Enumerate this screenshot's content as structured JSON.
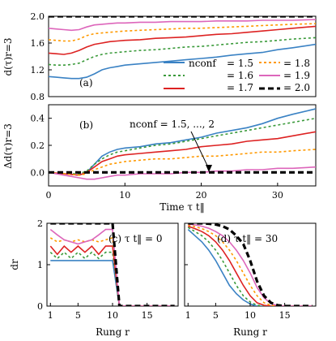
{
  "colors": {
    "1.5": "#3a82c4",
    "1.6": "#3a9a3a",
    "1.7": "#dd2222",
    "1.8": "#ff9900",
    "1.9": "#dd66bb",
    "2.0": "#000000"
  },
  "text": {
    "panel_a": "(a)",
    "panel_b": "(b)",
    "panel_c": "(c) τ t‖ = 0",
    "panel_d": "(d) τ t‖ = 30",
    "annotation": "nconf = 1.5, ..., 2",
    "xlabel_top": "Time τ t‖",
    "xlabel_bottom": "Rung r",
    "xlabel_bottom2": "Rung r",
    "ylabel_a": "d(τ)r=3",
    "ylabel_b": "Δd(τ)r=3",
    "ylabel_c": "dr",
    "legend_prefix": "nconf",
    "legend": [
      "= 1.5",
      "= 1.6",
      "= 1.7",
      "= 1.8",
      "= 1.9",
      "= 2.0"
    ]
  },
  "chart_data": [
    {
      "panel": "a",
      "type": "line",
      "xlim": [
        0,
        35
      ],
      "ylim": [
        0.8,
        2.0
      ],
      "yticks": [
        0.8,
        1.2,
        1.6,
        2.0
      ],
      "ylabel": "d(τ)r=3",
      "series": [
        {
          "name": "1.5",
          "x": [
            0,
            1,
            2,
            3,
            4,
            5,
            6,
            7,
            8,
            9,
            10,
            12,
            14,
            16,
            18,
            20,
            22,
            24,
            26,
            28,
            30,
            32,
            35
          ],
          "y": [
            1.1,
            1.09,
            1.08,
            1.07,
            1.07,
            1.09,
            1.14,
            1.2,
            1.23,
            1.25,
            1.27,
            1.29,
            1.31,
            1.33,
            1.35,
            1.37,
            1.39,
            1.42,
            1.44,
            1.46,
            1.5,
            1.53,
            1.58
          ]
        },
        {
          "name": "1.6",
          "x": [
            0,
            1,
            2,
            3,
            4,
            5,
            6,
            7,
            8,
            9,
            10,
            12,
            14,
            16,
            18,
            20,
            22,
            24,
            26,
            28,
            30,
            32,
            35
          ],
          "y": [
            1.28,
            1.27,
            1.27,
            1.28,
            1.3,
            1.35,
            1.4,
            1.43,
            1.45,
            1.46,
            1.47,
            1.49,
            1.5,
            1.52,
            1.54,
            1.55,
            1.57,
            1.59,
            1.61,
            1.62,
            1.64,
            1.66,
            1.68
          ]
        },
        {
          "name": "1.7",
          "x": [
            0,
            1,
            2,
            3,
            4,
            5,
            6,
            7,
            8,
            9,
            10,
            12,
            14,
            16,
            18,
            20,
            22,
            24,
            26,
            28,
            30,
            32,
            35
          ],
          "y": [
            1.45,
            1.44,
            1.43,
            1.45,
            1.49,
            1.54,
            1.58,
            1.6,
            1.62,
            1.63,
            1.64,
            1.65,
            1.67,
            1.68,
            1.69,
            1.71,
            1.73,
            1.74,
            1.76,
            1.78,
            1.8,
            1.82,
            1.85
          ]
        },
        {
          "name": "1.8",
          "x": [
            0,
            1,
            2,
            3,
            4,
            5,
            6,
            7,
            8,
            9,
            10,
            12,
            14,
            16,
            18,
            20,
            22,
            24,
            26,
            28,
            30,
            32,
            35
          ],
          "y": [
            1.65,
            1.64,
            1.63,
            1.63,
            1.66,
            1.71,
            1.74,
            1.75,
            1.76,
            1.77,
            1.78,
            1.79,
            1.8,
            1.81,
            1.82,
            1.82,
            1.83,
            1.84,
            1.85,
            1.86,
            1.87,
            1.88,
            1.89
          ]
        },
        {
          "name": "1.9",
          "x": [
            0,
            1,
            2,
            3,
            4,
            5,
            6,
            7,
            8,
            9,
            10,
            12,
            14,
            16,
            18,
            20,
            22,
            24,
            26,
            28,
            30,
            32,
            35
          ],
          "y": [
            1.82,
            1.81,
            1.8,
            1.79,
            1.8,
            1.84,
            1.87,
            1.88,
            1.89,
            1.9,
            1.9,
            1.91,
            1.91,
            1.92,
            1.92,
            1.92,
            1.93,
            1.93,
            1.93,
            1.94,
            1.94,
            1.94,
            1.95
          ]
        },
        {
          "name": "2.0",
          "x": [
            0,
            35
          ],
          "y": [
            2.0,
            2.0
          ]
        }
      ]
    },
    {
      "panel": "b",
      "type": "line",
      "xlim": [
        0,
        35
      ],
      "ylim": [
        -0.1,
        0.5
      ],
      "xticks": [
        0,
        10,
        20,
        30
      ],
      "yticks": [
        0.0,
        0.2,
        0.4
      ],
      "xlabel": "Time τ t‖",
      "ylabel": "Δd(τ)r=3",
      "series": [
        {
          "name": "1.5",
          "x": [
            0,
            2,
            4,
            5,
            6,
            7,
            8,
            9,
            10,
            12,
            14,
            16,
            18,
            20,
            22,
            24,
            26,
            28,
            30,
            32,
            35
          ],
          "y": [
            0.0,
            -0.01,
            -0.02,
            0.0,
            0.06,
            0.12,
            0.15,
            0.17,
            0.18,
            0.19,
            0.21,
            0.22,
            0.24,
            0.26,
            0.29,
            0.31,
            0.33,
            0.36,
            0.4,
            0.43,
            0.47
          ]
        },
        {
          "name": "1.6",
          "x": [
            0,
            2,
            4,
            5,
            6,
            7,
            8,
            9,
            10,
            12,
            14,
            16,
            18,
            20,
            22,
            24,
            26,
            28,
            30,
            32,
            35
          ],
          "y": [
            0.0,
            -0.01,
            -0.01,
            0.01,
            0.06,
            0.1,
            0.13,
            0.15,
            0.16,
            0.18,
            0.2,
            0.21,
            0.23,
            0.25,
            0.27,
            0.29,
            0.31,
            0.33,
            0.35,
            0.37,
            0.4
          ]
        },
        {
          "name": "1.7",
          "x": [
            0,
            2,
            4,
            5,
            6,
            7,
            8,
            9,
            10,
            12,
            14,
            16,
            18,
            20,
            22,
            24,
            26,
            28,
            30,
            32,
            35
          ],
          "y": [
            0.0,
            -0.01,
            -0.02,
            0.0,
            0.04,
            0.08,
            0.1,
            0.12,
            0.13,
            0.14,
            0.15,
            0.16,
            0.17,
            0.19,
            0.2,
            0.21,
            0.23,
            0.24,
            0.25,
            0.27,
            0.3
          ]
        },
        {
          "name": "1.8",
          "x": [
            0,
            2,
            4,
            5,
            6,
            7,
            8,
            9,
            10,
            12,
            14,
            16,
            18,
            20,
            22,
            24,
            26,
            28,
            30,
            32,
            35
          ],
          "y": [
            0.0,
            -0.01,
            -0.02,
            -0.01,
            0.02,
            0.04,
            0.06,
            0.07,
            0.08,
            0.09,
            0.1,
            0.1,
            0.11,
            0.12,
            0.12,
            0.13,
            0.14,
            0.15,
            0.15,
            0.16,
            0.17
          ]
        },
        {
          "name": "1.9",
          "x": [
            0,
            2,
            4,
            5,
            6,
            7,
            8,
            9,
            10,
            12,
            14,
            16,
            18,
            20,
            22,
            24,
            26,
            28,
            30,
            32,
            35
          ],
          "y": [
            0.0,
            -0.02,
            -0.04,
            -0.05,
            -0.05,
            -0.04,
            -0.03,
            -0.02,
            -0.02,
            -0.01,
            -0.01,
            -0.01,
            0.0,
            0.0,
            0.01,
            0.01,
            0.02,
            0.02,
            0.03,
            0.03,
            0.04
          ]
        },
        {
          "name": "2.0",
          "x": [
            0,
            35
          ],
          "y": [
            0.0,
            0.0
          ]
        }
      ]
    },
    {
      "panel": "c",
      "type": "line",
      "xlim": [
        0.5,
        19.5
      ],
      "ylim": [
        0,
        2
      ],
      "xticks": [
        1,
        5,
        10,
        15
      ],
      "yticks": [
        0,
        1,
        2
      ],
      "xlabel": "Rung r",
      "ylabel": "dr",
      "series": [
        {
          "name": "1.5",
          "x": [
            1,
            2,
            3,
            4,
            5,
            6,
            7,
            8,
            9,
            10,
            11,
            12,
            13,
            14,
            15,
            16,
            17,
            18,
            19
          ],
          "y": [
            1.1,
            1.1,
            1.1,
            1.1,
            1.1,
            1.1,
            1.1,
            1.1,
            1.1,
            1.1,
            0,
            0,
            0,
            0,
            0,
            0,
            0,
            0,
            0
          ]
        },
        {
          "name": "1.6",
          "x": [
            1,
            2,
            3,
            4,
            5,
            6,
            7,
            8,
            9,
            10,
            11,
            12,
            13,
            14,
            15,
            16,
            17,
            18,
            19
          ],
          "y": [
            1.3,
            1.15,
            1.3,
            1.15,
            1.3,
            1.15,
            1.3,
            1.15,
            1.3,
            1.3,
            0,
            0,
            0,
            0,
            0,
            0,
            0,
            0,
            0
          ]
        },
        {
          "name": "1.7",
          "x": [
            1,
            2,
            3,
            4,
            5,
            6,
            7,
            8,
            9,
            10,
            11,
            12,
            13,
            14,
            15,
            16,
            17,
            18,
            19
          ],
          "y": [
            1.45,
            1.25,
            1.45,
            1.3,
            1.45,
            1.3,
            1.45,
            1.25,
            1.45,
            1.45,
            0,
            0,
            0,
            0,
            0,
            0,
            0,
            0,
            0
          ]
        },
        {
          "name": "1.8",
          "x": [
            1,
            2,
            3,
            4,
            5,
            6,
            7,
            8,
            9,
            10,
            11,
            12,
            13,
            14,
            15,
            16,
            17,
            18,
            19
          ],
          "y": [
            1.65,
            1.55,
            1.6,
            1.55,
            1.6,
            1.55,
            1.6,
            1.55,
            1.6,
            1.65,
            0,
            0,
            0,
            0,
            0,
            0,
            0,
            0,
            0
          ]
        },
        {
          "name": "1.9",
          "x": [
            1,
            2,
            3,
            4,
            5,
            6,
            7,
            8,
            9,
            10,
            11,
            12,
            13,
            14,
            15,
            16,
            17,
            18,
            19
          ],
          "y": [
            1.85,
            1.72,
            1.6,
            1.55,
            1.5,
            1.55,
            1.6,
            1.72,
            1.85,
            1.85,
            0,
            0,
            0,
            0,
            0,
            0,
            0,
            0,
            0
          ]
        },
        {
          "name": "2.0",
          "x": [
            1,
            2,
            3,
            4,
            5,
            6,
            7,
            8,
            9,
            10,
            11,
            12,
            13,
            14,
            15,
            16,
            17,
            18,
            19
          ],
          "y": [
            2,
            2,
            2,
            2,
            2,
            2,
            2,
            2,
            2,
            2,
            0,
            0,
            0,
            0,
            0,
            0,
            0,
            0,
            0
          ]
        }
      ]
    },
    {
      "panel": "d",
      "type": "line",
      "xlim": [
        0.5,
        19.5
      ],
      "ylim": [
        0,
        2
      ],
      "xticks": [
        1,
        5,
        10,
        15
      ],
      "yticks": [
        0,
        1,
        2
      ],
      "xlabel": "Rung r",
      "series": [
        {
          "name": "1.5",
          "x": [
            1,
            2,
            3,
            4,
            5,
            6,
            7,
            8,
            9,
            10,
            11,
            12,
            13,
            14,
            15,
            16,
            17,
            18,
            19
          ],
          "y": [
            1.85,
            1.7,
            1.55,
            1.35,
            1.1,
            0.8,
            0.5,
            0.3,
            0.15,
            0.05,
            0,
            0,
            0,
            0,
            0,
            0,
            0,
            0,
            0
          ]
        },
        {
          "name": "1.6",
          "x": [
            1,
            2,
            3,
            4,
            5,
            6,
            7,
            8,
            9,
            10,
            11,
            12,
            13,
            14,
            15,
            16,
            17,
            18,
            19
          ],
          "y": [
            1.9,
            1.8,
            1.7,
            1.55,
            1.35,
            1.1,
            0.8,
            0.5,
            0.25,
            0.1,
            0.02,
            0,
            0,
            0,
            0,
            0,
            0,
            0,
            0
          ]
        },
        {
          "name": "1.7",
          "x": [
            1,
            2,
            3,
            4,
            5,
            6,
            7,
            8,
            9,
            10,
            11,
            12,
            13,
            14,
            15,
            16,
            17,
            18,
            19
          ],
          "y": [
            1.93,
            1.87,
            1.8,
            1.7,
            1.55,
            1.35,
            1.1,
            0.8,
            0.5,
            0.25,
            0.08,
            0.02,
            0,
            0,
            0,
            0,
            0,
            0,
            0
          ]
        },
        {
          "name": "1.8",
          "x": [
            1,
            2,
            3,
            4,
            5,
            6,
            7,
            8,
            9,
            10,
            11,
            12,
            13,
            14,
            15,
            16,
            17,
            18,
            19
          ],
          "y": [
            1.96,
            1.92,
            1.87,
            1.8,
            1.7,
            1.55,
            1.35,
            1.1,
            0.8,
            0.5,
            0.25,
            0.08,
            0.02,
            0,
            0,
            0,
            0,
            0,
            0
          ]
        },
        {
          "name": "1.9",
          "x": [
            1,
            2,
            3,
            4,
            5,
            6,
            7,
            8,
            9,
            10,
            11,
            12,
            13,
            14,
            15,
            16,
            17,
            18,
            19
          ],
          "y": [
            1.98,
            1.96,
            1.93,
            1.88,
            1.8,
            1.7,
            1.55,
            1.35,
            1.1,
            0.8,
            0.45,
            0.2,
            0.06,
            0.01,
            0,
            0,
            0,
            0,
            0
          ]
        },
        {
          "name": "2.0",
          "x": [
            1,
            2,
            3,
            4,
            5,
            6,
            7,
            8,
            9,
            10,
            11,
            12,
            13,
            14,
            15,
            16,
            17,
            18,
            19
          ],
          "y": [
            2.0,
            2.0,
            2.0,
            1.99,
            1.97,
            1.93,
            1.85,
            1.7,
            1.5,
            1.1,
            0.6,
            0.25,
            0.08,
            0.02,
            0,
            0,
            0,
            0,
            0
          ]
        }
      ]
    }
  ]
}
